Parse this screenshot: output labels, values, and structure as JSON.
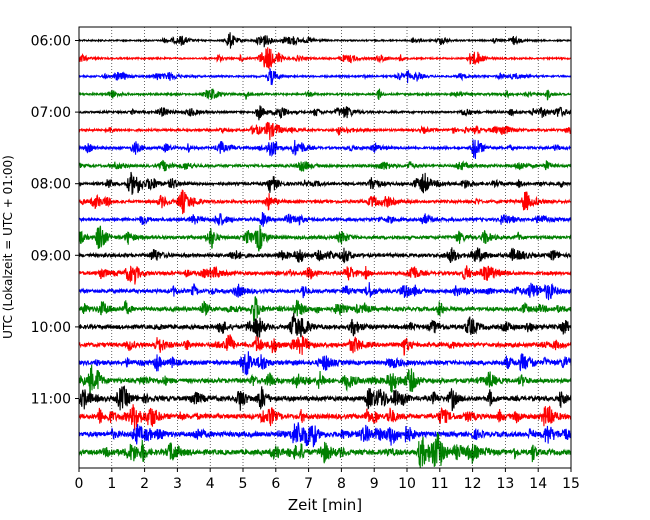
{
  "chart_data": {
    "type": "line",
    "title": "",
    "xlabel": "Zeit  [min]",
    "ylabel": "UTC (Lokalzeit = UTC + 01:00)",
    "xlim": [
      0,
      15
    ],
    "x_ticks": [
      "0",
      "1",
      "2",
      "3",
      "4",
      "5",
      "6",
      "7",
      "8",
      "9",
      "10",
      "11",
      "12",
      "13",
      "14",
      "15"
    ],
    "y_ticks": [
      "06:00",
      "07:00",
      "08:00",
      "09:00",
      "10:00",
      "11:00"
    ],
    "trace_start_utc": "06:00",
    "trace_interval_min": 15,
    "trace_count": 24,
    "trace_colors": [
      "#000000",
      "#ff0000",
      "#0000ff",
      "#008000"
    ],
    "grid": "vertical-dotted"
  }
}
